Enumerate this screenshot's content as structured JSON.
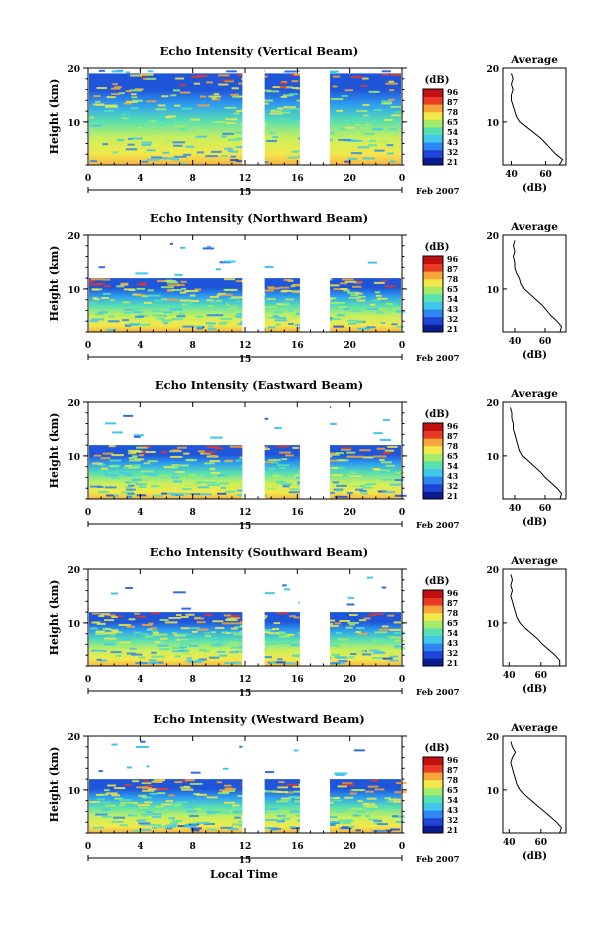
{
  "figure": {
    "time_ticks": [
      "0",
      "4",
      "8",
      "12",
      "16",
      "20",
      "0"
    ],
    "date_label": "15",
    "month_label": "Feb 2007",
    "xlabel": "Local Time",
    "ylabel": "Height (km)",
    "colorbar_unit": "(dB)",
    "colorbar_ticks": [
      "96",
      "87",
      "78",
      "65",
      "54",
      "43",
      "32",
      "21"
    ],
    "colors": [
      "#0a1a8f",
      "#1f45d6",
      "#2e86f0",
      "#3fc8ea",
      "#58e0b0",
      "#a6ec6a",
      "#f2e84a",
      "#f5a53a",
      "#e83a24",
      "#c21010"
    ],
    "height_ticks": [
      "20",
      "10"
    ],
    "avg_title": "Average",
    "avg_xlabel": "(dB)"
  },
  "chart_data": [
    {
      "type": "heatmap",
      "title": "Echo Intensity (Vertical Beam)",
      "xlabel": "Local Time",
      "ylabel": "Height (km)",
      "xlim": [
        0,
        24
      ],
      "ylim": [
        2,
        20
      ],
      "data_gaps_hours": [
        [
          11.8,
          13.5
        ],
        [
          16.2,
          18.5
        ]
      ],
      "colorbar": {
        "label": "(dB)",
        "range": [
          21,
          96
        ]
      },
      "echo_top_km": 19,
      "average_profile": {
        "xlim": [
          35,
          72
        ],
        "xticks": [
          "40",
          "60"
        ],
        "height_km": [
          2,
          3,
          4,
          5,
          6,
          7,
          8,
          9,
          10,
          11,
          12,
          13,
          14,
          15,
          16,
          17,
          18,
          19
        ],
        "db": [
          68,
          70,
          66,
          63,
          60,
          57,
          53,
          49,
          45,
          43,
          42,
          41,
          40,
          40,
          41,
          40,
          41,
          40
        ]
      }
    },
    {
      "type": "heatmap",
      "title": "Echo Intensity (Northward Beam)",
      "xlabel": "Local Time",
      "ylabel": "Height (km)",
      "xlim": [
        0,
        24
      ],
      "ylim": [
        2,
        20
      ],
      "data_gaps_hours": [
        [
          11.8,
          13.5
        ],
        [
          16.2,
          18.5
        ]
      ],
      "colorbar": {
        "label": "(dB)",
        "range": [
          21,
          96
        ]
      },
      "echo_top_km": 12,
      "average_profile": {
        "xlim": [
          32,
          74
        ],
        "xticks": [
          "40",
          "60"
        ],
        "height_km": [
          2,
          3,
          4,
          5,
          6,
          7,
          8,
          9,
          10,
          11,
          12,
          13,
          14,
          15,
          16,
          17,
          18,
          19
        ],
        "db": [
          70,
          71,
          68,
          64,
          61,
          58,
          54,
          50,
          46,
          44,
          43,
          41,
          40,
          40,
          39,
          40,
          39,
          40
        ]
      }
    },
    {
      "type": "heatmap",
      "title": "Echo Intensity (Eastward Beam)",
      "xlabel": "Local Time",
      "ylabel": "Height (km)",
      "xlim": [
        0,
        24
      ],
      "ylim": [
        2,
        20
      ],
      "data_gaps_hours": [
        [
          11.8,
          13.5
        ],
        [
          16.2,
          18.5
        ]
      ],
      "colorbar": {
        "label": "(dB)",
        "range": [
          21,
          96
        ]
      },
      "echo_top_km": 12,
      "average_profile": {
        "xlim": [
          32,
          74
        ],
        "xticks": [
          "40",
          "60"
        ],
        "height_km": [
          2,
          3,
          4,
          5,
          6,
          7,
          8,
          9,
          10,
          11,
          12,
          13,
          14,
          15,
          16,
          17,
          18,
          19
        ],
        "db": [
          70,
          71,
          68,
          64,
          60,
          57,
          53,
          49,
          45,
          43,
          42,
          41,
          40,
          39,
          39,
          38,
          38,
          37
        ]
      }
    },
    {
      "type": "heatmap",
      "title": "Echo Intensity (Southward Beam)",
      "xlabel": "Local Time",
      "ylabel": "Height (km)",
      "xlim": [
        0,
        24
      ],
      "ylim": [
        2,
        20
      ],
      "data_gaps_hours": [
        [
          11.8,
          13.5
        ],
        [
          16.2,
          18.5
        ]
      ],
      "colorbar": {
        "label": "(dB)",
        "range": [
          21,
          96
        ]
      },
      "echo_top_km": 12,
      "average_profile": {
        "xlim": [
          36,
          76
        ],
        "xticks": [
          "40",
          "60"
        ],
        "height_km": [
          2,
          3,
          4,
          5,
          6,
          7,
          8,
          9,
          10,
          11,
          12,
          13,
          14,
          15,
          16,
          17,
          18,
          19
        ],
        "db": [
          72,
          72,
          69,
          65,
          61,
          58,
          54,
          50,
          47,
          45,
          44,
          43,
          42,
          41,
          42,
          41,
          42,
          41
        ]
      }
    },
    {
      "type": "heatmap",
      "title": "Echo Intensity (Westward Beam)",
      "xlabel": "Local Time",
      "ylabel": "Height (km)",
      "xlim": [
        0,
        24
      ],
      "ylim": [
        2,
        20
      ],
      "data_gaps_hours": [
        [
          11.8,
          13.5
        ],
        [
          16.2,
          18.5
        ]
      ],
      "colorbar": {
        "label": "(dB)",
        "range": [
          21,
          96
        ]
      },
      "echo_top_km": 12,
      "average_profile": {
        "xlim": [
          36,
          76
        ],
        "xticks": [
          "40",
          "60"
        ],
        "height_km": [
          2,
          3,
          4,
          5,
          6,
          7,
          8,
          9,
          10,
          11,
          12,
          13,
          14,
          15,
          16,
          17,
          18,
          19
        ],
        "db": [
          72,
          73,
          70,
          66,
          62,
          58,
          54,
          50,
          47,
          45,
          44,
          43,
          42,
          41,
          42,
          44,
          42,
          41
        ]
      }
    }
  ]
}
